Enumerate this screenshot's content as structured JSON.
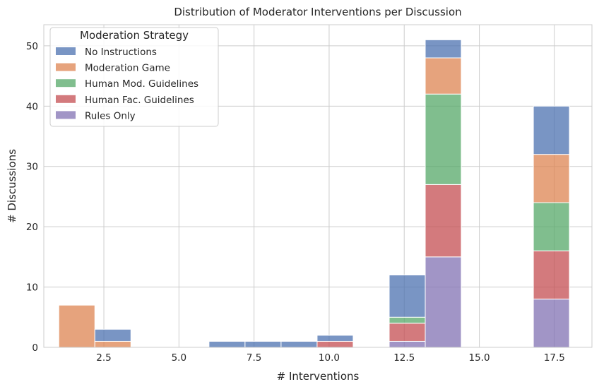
{
  "chart_data": {
    "type": "bar",
    "stacked": true,
    "title": "Distribution of Moderator Interventions per Discussion",
    "xlabel": "# Interventions",
    "ylabel": "# Discussions",
    "xlim": [
      0.5,
      18.75
    ],
    "ylim": [
      0,
      53.5
    ],
    "xticks": [
      "2.5",
      "5.0",
      "7.5",
      "10.0",
      "12.5",
      "15.0",
      "17.5"
    ],
    "yticks": [
      "0",
      "10",
      "20",
      "30",
      "40",
      "50"
    ],
    "grid": true,
    "legend": {
      "title": "Moderation Strategy",
      "placement": "top-left"
    },
    "bins": [
      {
        "x0": 1.0,
        "x1": 2.2
      },
      {
        "x0": 2.2,
        "x1": 3.4
      },
      {
        "x0": 6.0,
        "x1": 7.2
      },
      {
        "x0": 7.2,
        "x1": 8.4
      },
      {
        "x0": 8.4,
        "x1": 9.6
      },
      {
        "x0": 9.6,
        "x1": 10.8
      },
      {
        "x0": 12.0,
        "x1": 13.2
      },
      {
        "x0": 13.2,
        "x1": 14.4
      },
      {
        "x0": 16.8,
        "x1": 18.0
      }
    ],
    "series": [
      {
        "name": "Rules Only",
        "color": "#8172b3",
        "values": [
          0,
          0,
          0,
          0,
          0,
          0,
          1,
          15,
          8
        ]
      },
      {
        "name": "Human Fac. Guidelines",
        "color": "#c44e52",
        "values": [
          0,
          0,
          0,
          0,
          0,
          1,
          3,
          12,
          8
        ]
      },
      {
        "name": "Human Mod. Guidelines",
        "color": "#55a868",
        "values": [
          0,
          0,
          0,
          0,
          0,
          0,
          1,
          15,
          8
        ]
      },
      {
        "name": "Moderation Game",
        "color": "#dd8452",
        "values": [
          7,
          1,
          0,
          0,
          0,
          0,
          0,
          6,
          8
        ]
      },
      {
        "name": "No Instructions",
        "color": "#4c72b0",
        "values": [
          0,
          2,
          1,
          1,
          1,
          1,
          7,
          3,
          8
        ]
      }
    ],
    "legend_order": [
      "No Instructions",
      "Moderation Game",
      "Human Mod. Guidelines",
      "Human Fac. Guidelines",
      "Rules Only"
    ]
  }
}
